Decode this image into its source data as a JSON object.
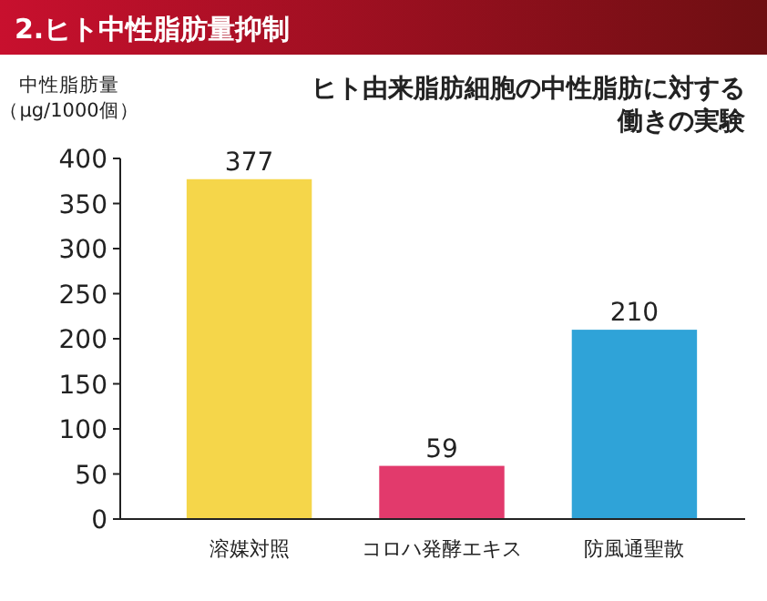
{
  "chart_data": {
    "type": "bar",
    "title": "2.ヒト中性脂肪量抑制",
    "subtitle": "ヒト由来脂肪細胞の中性脂肪に対する働きの実験",
    "ylabel": "中性脂肪量（μg/1000個）",
    "categories": [
      "溶媒対照",
      "コロハ発酵エキス",
      "防風通聖散"
    ],
    "values": [
      377,
      59,
      210
    ],
    "colors": [
      "#f5d64a",
      "#e23a6c",
      "#2fa3d8"
    ],
    "ylim": [
      0,
      400
    ],
    "yticks": [
      0,
      50,
      100,
      150,
      200,
      250,
      300,
      350,
      400
    ],
    "grid": false,
    "data_labels": true
  }
}
